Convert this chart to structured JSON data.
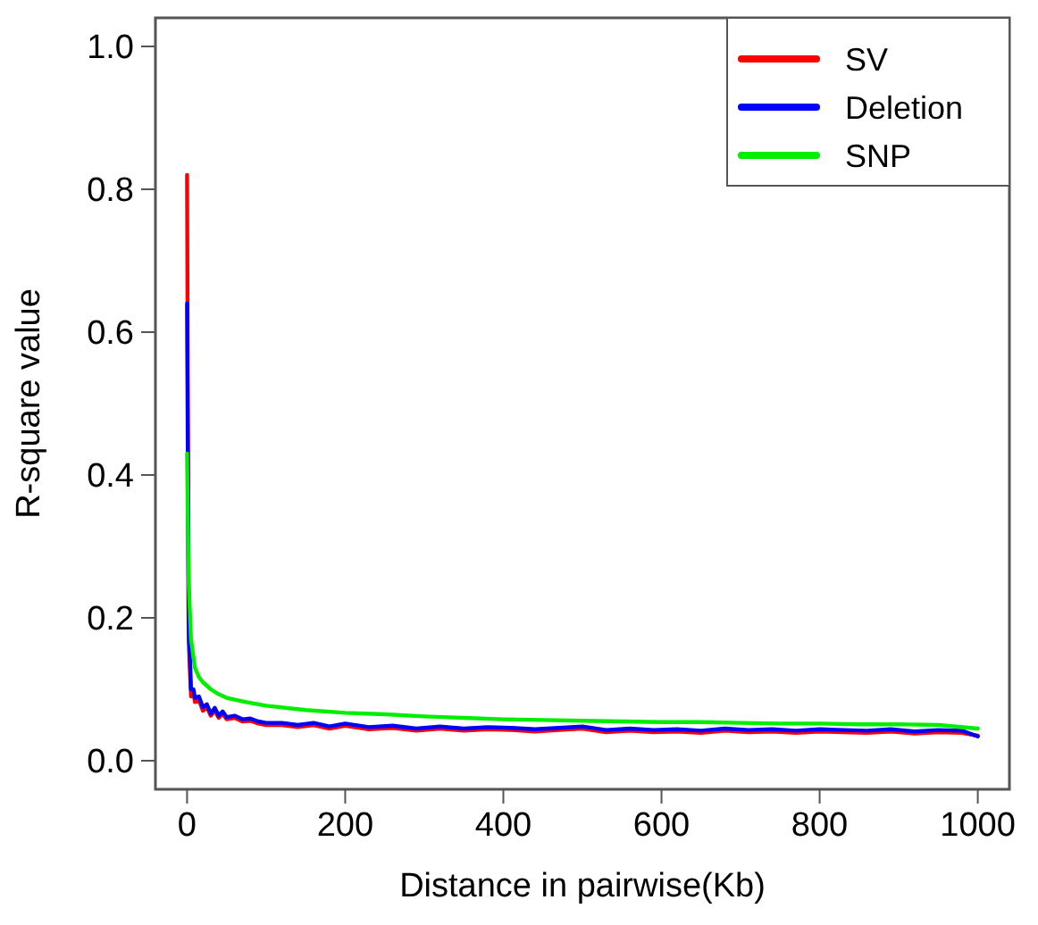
{
  "chart_data": {
    "type": "line",
    "xlabel": "Distance in pairwise(Kb)",
    "ylabel": "R-square value",
    "xlim": [
      -40,
      1040
    ],
    "ylim": [
      -0.04,
      1.04
    ],
    "xticks": [
      0,
      200,
      400,
      600,
      800,
      1000
    ],
    "yticks": [
      {
        "value": 0,
        "label": "0.0"
      },
      0.2,
      0.4,
      0.6,
      0.8,
      {
        "value": 1,
        "label": "1.0"
      }
    ],
    "grid": false,
    "legend": "top right",
    "line_style": "solid",
    "series": [
      {
        "name": "SV",
        "color": "#ff0000",
        "x": [
          0,
          2,
          5,
          8,
          10,
          15,
          20,
          25,
          30,
          35,
          40,
          45,
          50,
          60,
          70,
          80,
          90,
          100,
          120,
          140,
          160,
          180,
          200,
          230,
          260,
          290,
          320,
          350,
          380,
          410,
          440,
          470,
          500,
          530,
          560,
          590,
          620,
          650,
          680,
          710,
          740,
          770,
          800,
          830,
          860,
          890,
          920,
          950,
          980,
          1000
        ],
        "values": [
          0.82,
          0.17,
          0.09,
          0.095,
          0.082,
          0.085,
          0.07,
          0.075,
          0.063,
          0.07,
          0.06,
          0.066,
          0.058,
          0.06,
          0.055,
          0.056,
          0.052,
          0.05,
          0.05,
          0.047,
          0.05,
          0.045,
          0.049,
          0.044,
          0.046,
          0.042,
          0.045,
          0.042,
          0.044,
          0.043,
          0.041,
          0.043,
          0.045,
          0.04,
          0.042,
          0.04,
          0.041,
          0.039,
          0.042,
          0.04,
          0.041,
          0.039,
          0.041,
          0.04,
          0.039,
          0.041,
          0.038,
          0.04,
          0.039,
          0.035
        ]
      },
      {
        "name": "Deletion",
        "color": "#0000ff",
        "x": [
          0,
          2,
          5,
          8,
          10,
          15,
          20,
          25,
          30,
          35,
          40,
          45,
          50,
          60,
          70,
          80,
          90,
          100,
          120,
          140,
          160,
          180,
          200,
          230,
          260,
          290,
          320,
          350,
          380,
          410,
          440,
          470,
          500,
          530,
          560,
          590,
          620,
          650,
          680,
          710,
          740,
          770,
          800,
          830,
          860,
          890,
          920,
          950,
          980,
          1000
        ],
        "values": [
          0.64,
          0.2,
          0.1,
          0.1,
          0.088,
          0.09,
          0.075,
          0.079,
          0.066,
          0.074,
          0.063,
          0.069,
          0.061,
          0.063,
          0.058,
          0.059,
          0.055,
          0.053,
          0.053,
          0.05,
          0.053,
          0.048,
          0.052,
          0.047,
          0.049,
          0.045,
          0.048,
          0.045,
          0.047,
          0.046,
          0.044,
          0.046,
          0.048,
          0.043,
          0.045,
          0.043,
          0.044,
          0.042,
          0.045,
          0.043,
          0.044,
          0.042,
          0.044,
          0.043,
          0.042,
          0.044,
          0.041,
          0.043,
          0.042,
          0.034
        ]
      },
      {
        "name": "SNP",
        "color": "#00ee00",
        "x": [
          0,
          2,
          5,
          10,
          15,
          20,
          30,
          40,
          50,
          75,
          100,
          150,
          200,
          250,
          300,
          350,
          400,
          450,
          500,
          550,
          600,
          650,
          700,
          750,
          800,
          850,
          900,
          950,
          1000
        ],
        "values": [
          0.43,
          0.25,
          0.17,
          0.13,
          0.117,
          0.11,
          0.1,
          0.093,
          0.088,
          0.082,
          0.077,
          0.071,
          0.067,
          0.065,
          0.062,
          0.06,
          0.058,
          0.057,
          0.056,
          0.055,
          0.054,
          0.054,
          0.053,
          0.052,
          0.052,
          0.051,
          0.051,
          0.05,
          0.045
        ]
      }
    ]
  }
}
